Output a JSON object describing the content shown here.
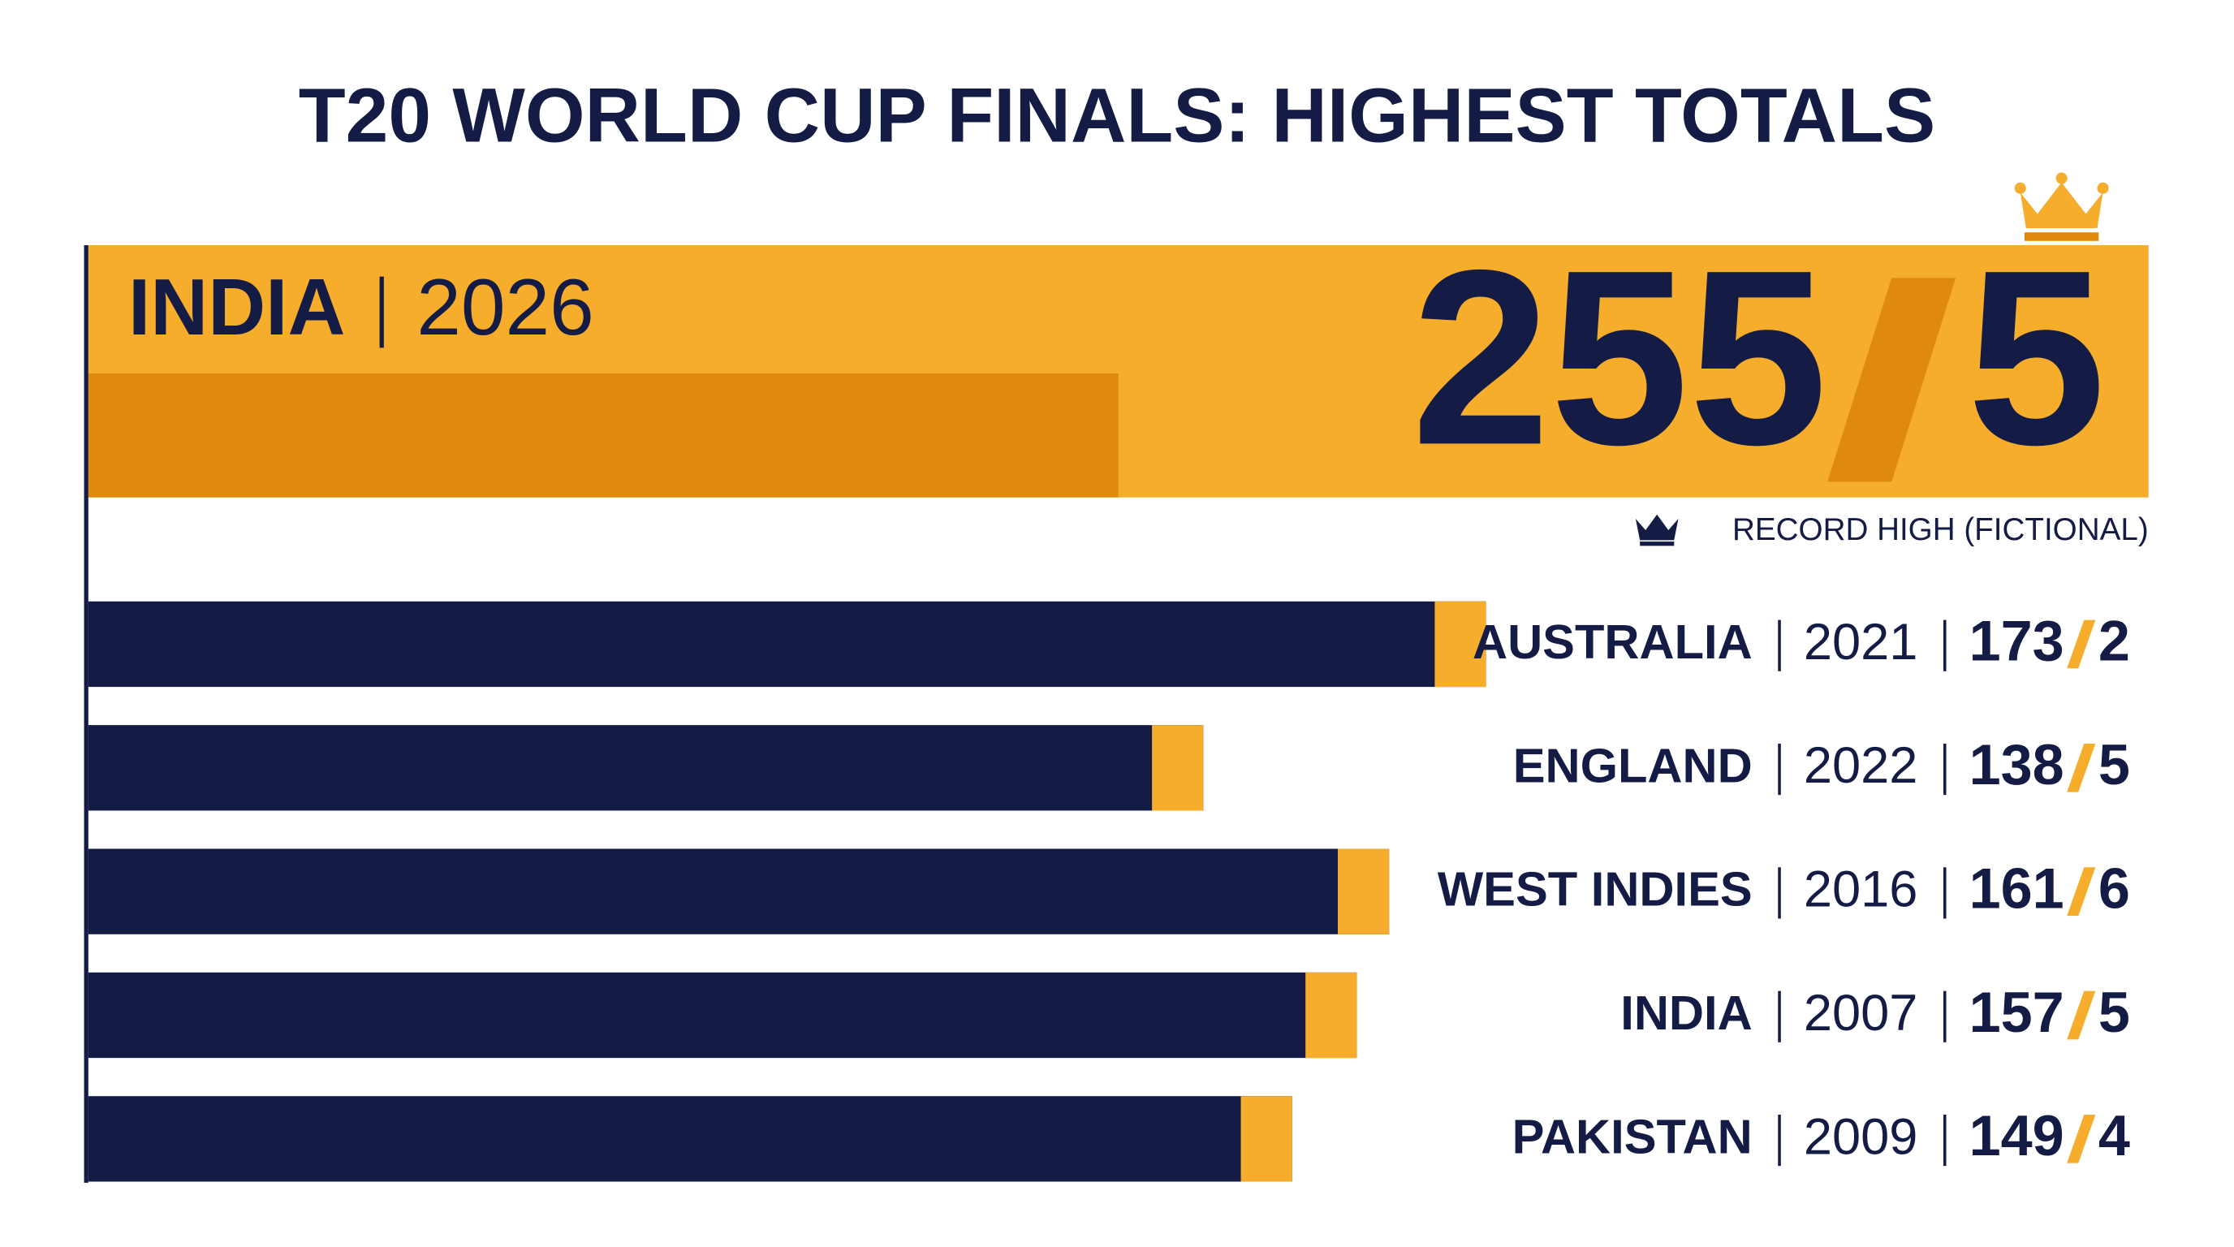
{
  "chart_data": {
    "type": "bar",
    "orientation": "horizontal",
    "title": "T20 WORLD CUP FINALS: HIGHEST TOTALS",
    "highlight": {
      "team": "INDIA",
      "year": "2026",
      "runs": 255,
      "wickets": 5,
      "note": "RECORD HIGH (FICTIONAL)",
      "color": "#f5ad2b"
    },
    "categories": [
      "AUSTRALIA",
      "ENGLAND",
      "WEST INDIES",
      "INDIA",
      "PAKISTAN"
    ],
    "years": [
      "2021",
      "2022",
      "2016",
      "2007",
      "2009"
    ],
    "values": [
      173,
      138,
      161,
      157,
      149
    ],
    "wickets": [
      2,
      5,
      6,
      5,
      4
    ],
    "color": "#141c45",
    "accent": "#f5ad2b"
  }
}
